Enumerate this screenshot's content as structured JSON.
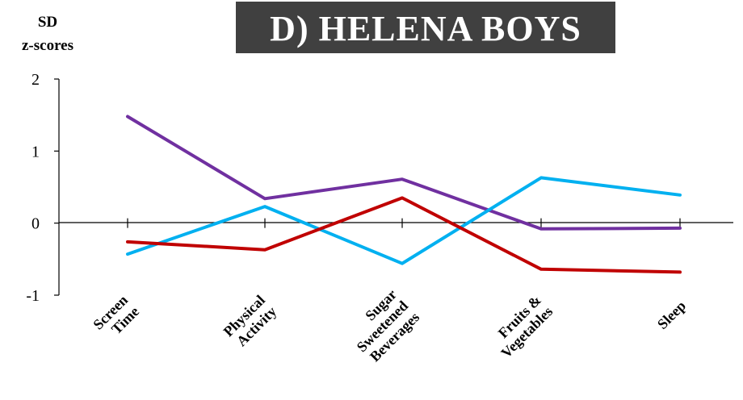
{
  "chart_data": {
    "type": "line",
    "title": "D)   HELENA   BOYS",
    "ylabel_lines": [
      "SD",
      "z-scores"
    ],
    "xlabel": "",
    "ylim": [
      -1,
      2
    ],
    "yticks": [
      -1,
      0,
      1,
      2
    ],
    "categories": [
      [
        "Screen",
        "Time"
      ],
      [
        "Physical",
        "Activity"
      ],
      [
        "Sugar",
        "Sweetened",
        "Beverages"
      ],
      [
        "Fruits &",
        "Vegetables"
      ],
      [
        "Sleep"
      ]
    ],
    "series": [
      {
        "color": "#7030a0",
        "values": [
          1.48,
          0.34,
          0.61,
          -0.08,
          -0.07
        ]
      },
      {
        "color": "#00b0f0",
        "values": [
          -0.43,
          0.23,
          -0.56,
          0.63,
          0.39
        ]
      },
      {
        "color": "#c00000",
        "values": [
          -0.26,
          -0.37,
          0.35,
          -0.64,
          -0.68
        ]
      }
    ],
    "grid": false,
    "legend": "none"
  }
}
